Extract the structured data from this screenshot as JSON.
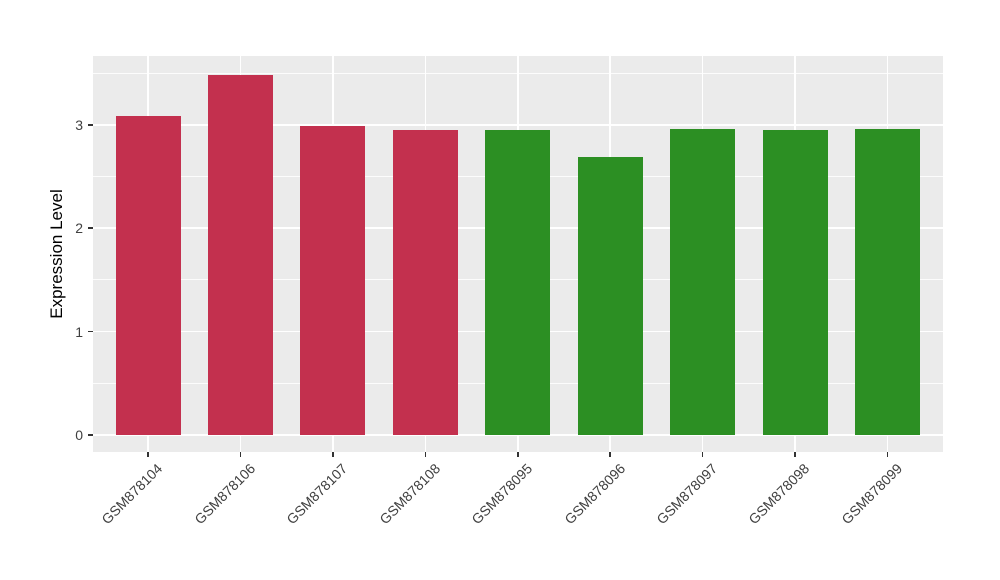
{
  "chart_data": {
    "type": "bar",
    "title": "",
    "xlabel": "",
    "ylabel": "Expression Level",
    "categories": [
      "GSM878104",
      "GSM878106",
      "GSM878107",
      "GSM878108",
      "GSM878095",
      "GSM878096",
      "GSM878097",
      "GSM878098",
      "GSM878099"
    ],
    "values": [
      3.09,
      3.48,
      2.99,
      2.95,
      2.95,
      2.69,
      2.96,
      2.95,
      2.96
    ],
    "bar_colors": [
      "#C3304E",
      "#C3304E",
      "#C3304E",
      "#C3304E",
      "#2C8F23",
      "#2C8F23",
      "#2C8F23",
      "#2C8F23",
      "#2C8F23"
    ],
    "y_ticks": [
      0,
      1,
      2,
      3
    ],
    "ylim": [
      -0.17,
      3.66
    ],
    "grid": "white major and minor horizontal lines, white vertical lines at category centers",
    "legend": "none",
    "panel_background": "#EBEBEB",
    "grid_color": "#FFFFFF",
    "tick_color": "#333333",
    "tick_label_color": "#404040"
  }
}
